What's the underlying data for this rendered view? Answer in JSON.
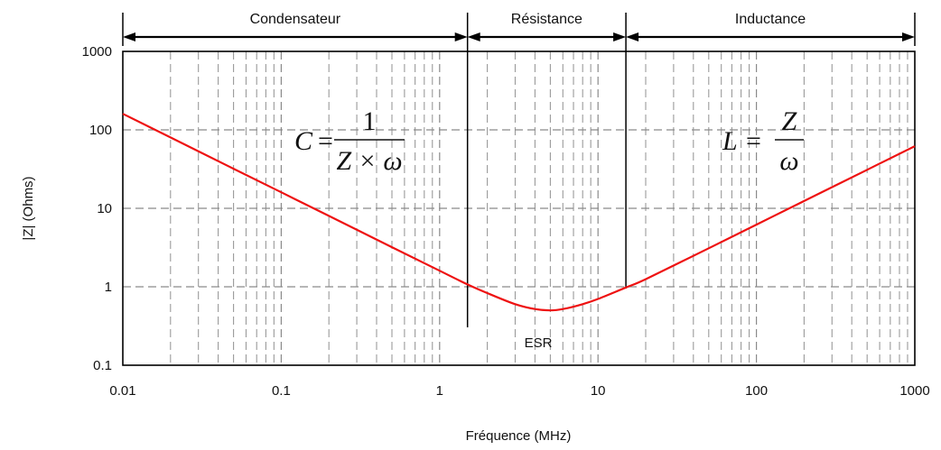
{
  "chart_data": {
    "type": "line",
    "title": "",
    "xlabel": "Fréquence (MHz)",
    "ylabel": "|Z| (Ohms)",
    "xscale": "log",
    "yscale": "log",
    "xlim": [
      0.01,
      1000
    ],
    "ylim": [
      0.1,
      1000
    ],
    "grid": true,
    "x_ticks": [
      "0.01",
      "0.1",
      "1",
      "10",
      "100",
      "1000"
    ],
    "y_ticks": [
      "0.1",
      "1",
      "10",
      "100",
      "1000"
    ],
    "series": [
      {
        "color": "#ee1111",
        "x": [
          0.01,
          0.02,
          0.05,
          0.1,
          0.2,
          0.5,
          1,
          1.5,
          2,
          3,
          4,
          5,
          6,
          8,
          10,
          15,
          20,
          50,
          100,
          200,
          500,
          1000
        ],
        "y": [
          160,
          80,
          32,
          16,
          8,
          3.2,
          1.6,
          1.07,
          0.83,
          0.6,
          0.52,
          0.5,
          0.52,
          0.6,
          0.7,
          0.98,
          1.25,
          3.1,
          6.2,
          12.4,
          31,
          62
        ]
      }
    ],
    "regions": [
      {
        "label": "Condensateur",
        "from": 0.01,
        "to": 1.5
      },
      {
        "label": "Résistance",
        "from": 1.5,
        "to": 15
      },
      {
        "label": "Inductance",
        "from": 15,
        "to": 1000
      }
    ],
    "annotations": {
      "esr": "ESR",
      "formula_c": {
        "lhs": "C",
        "eq": "=",
        "numerator": "1",
        "denominator": "Z × ω"
      },
      "formula_l": {
        "lhs": "L",
        "eq": "=",
        "numerator": "Z",
        "denominator": "ω"
      }
    }
  }
}
